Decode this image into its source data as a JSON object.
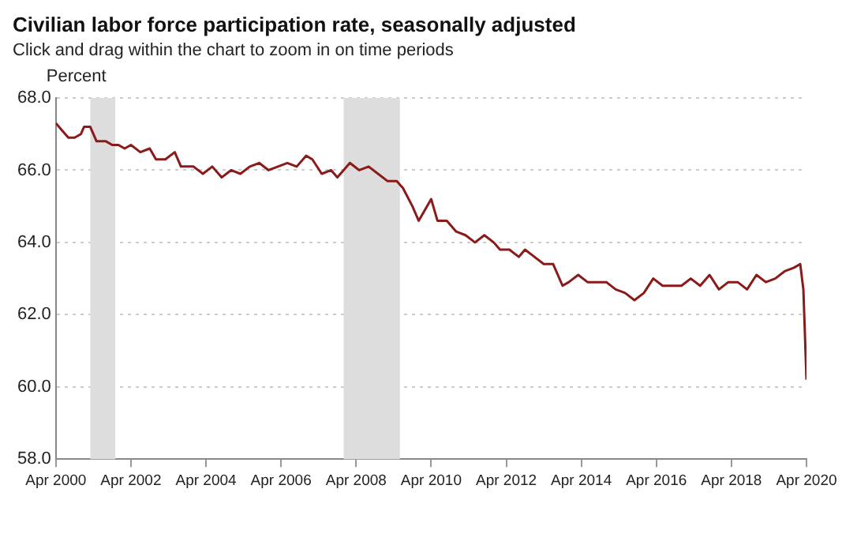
{
  "chart_data": {
    "type": "line",
    "title": "Civilian labor force participation rate, seasonally adjusted",
    "subtitle": "Click and drag within the chart to zoom in on time periods",
    "ylabel": "Percent",
    "x": [
      "2000-04",
      "2000-06",
      "2000-08",
      "2000-10",
      "2000-12",
      "2001-01",
      "2001-03",
      "2001-05",
      "2001-08",
      "2001-10",
      "2001-12",
      "2002-02",
      "2002-04",
      "2002-07",
      "2002-10",
      "2002-12",
      "2003-03",
      "2003-06",
      "2003-08",
      "2003-12",
      "2004-03",
      "2004-06",
      "2004-09",
      "2004-12",
      "2005-03",
      "2005-06",
      "2005-09",
      "2005-12",
      "2006-03",
      "2006-06",
      "2006-09",
      "2006-12",
      "2007-02",
      "2007-05",
      "2007-08",
      "2007-10",
      "2007-12",
      "2008-02",
      "2008-05",
      "2008-08",
      "2008-11",
      "2009-02",
      "2009-05",
      "2009-07",
      "2009-10",
      "2009-12",
      "2010-02",
      "2010-04",
      "2010-06",
      "2010-09",
      "2010-12",
      "2011-03",
      "2011-06",
      "2011-09",
      "2011-12",
      "2012-02",
      "2012-05",
      "2012-08",
      "2012-10",
      "2013-01",
      "2013-04",
      "2013-07",
      "2013-10",
      "2013-12",
      "2014-03",
      "2014-06",
      "2014-09",
      "2014-12",
      "2015-03",
      "2015-06",
      "2015-09",
      "2015-12",
      "2016-03",
      "2016-06",
      "2016-09",
      "2016-12",
      "2017-03",
      "2017-06",
      "2017-09",
      "2017-12",
      "2018-03",
      "2018-06",
      "2018-09",
      "2018-12",
      "2019-03",
      "2019-06",
      "2019-09",
      "2019-12",
      "2020-02",
      "2020-03",
      "2020-04"
    ],
    "series": [
      {
        "color": "#8b1a1a",
        "values": [
          67.3,
          67.1,
          66.9,
          66.9,
          67.0,
          67.2,
          67.2,
          66.8,
          66.8,
          66.7,
          66.7,
          66.6,
          66.7,
          66.5,
          66.6,
          66.3,
          66.3,
          66.5,
          66.1,
          66.1,
          65.9,
          66.1,
          65.8,
          66.0,
          65.9,
          66.1,
          66.2,
          66.0,
          66.1,
          66.2,
          66.1,
          66.4,
          66.3,
          65.9,
          66.0,
          65.8,
          66.0,
          66.2,
          66.0,
          66.1,
          65.9,
          65.7,
          65.7,
          65.5,
          65.0,
          64.6,
          64.9,
          65.2,
          64.6,
          64.6,
          64.3,
          64.2,
          64.0,
          64.2,
          64.0,
          63.8,
          63.8,
          63.6,
          63.8,
          63.6,
          63.4,
          63.4,
          62.8,
          62.9,
          63.1,
          62.9,
          62.9,
          62.9,
          62.7,
          62.6,
          62.4,
          62.6,
          63.0,
          62.8,
          62.8,
          62.8,
          63.0,
          62.8,
          63.1,
          62.7,
          62.9,
          62.9,
          62.7,
          63.1,
          62.9,
          63.0,
          63.2,
          63.3,
          63.4,
          62.7,
          60.2
        ]
      }
    ],
    "xlim": [
      "2000-04",
      "2020-04"
    ],
    "xticks": [
      {
        "value": "2000-04",
        "label": "Apr 2000"
      },
      {
        "value": "2002-04",
        "label": "Apr 2002"
      },
      {
        "value": "2004-04",
        "label": "Apr 2004"
      },
      {
        "value": "2006-04",
        "label": "Apr 2006"
      },
      {
        "value": "2008-04",
        "label": "Apr 2008"
      },
      {
        "value": "2010-04",
        "label": "Apr 2010"
      },
      {
        "value": "2012-04",
        "label": "Apr 2012"
      },
      {
        "value": "2014-04",
        "label": "Apr 2014"
      },
      {
        "value": "2016-04",
        "label": "Apr 2016"
      },
      {
        "value": "2018-04",
        "label": "Apr 2018"
      },
      {
        "value": "2020-04",
        "label": "Apr 2020"
      }
    ],
    "ylim": [
      58,
      68
    ],
    "yticks": [
      {
        "value": 58,
        "label": "58.0"
      },
      {
        "value": 60,
        "label": "60.0"
      },
      {
        "value": 62,
        "label": "62.0"
      },
      {
        "value": 64,
        "label": "64.0"
      },
      {
        "value": 66,
        "label": "66.0"
      },
      {
        "value": 68,
        "label": "68.0"
      }
    ],
    "bands": [
      {
        "axis": "x",
        "from": "2001-03",
        "to": "2001-11",
        "color": "#dddddd"
      },
      {
        "axis": "x",
        "from": "2007-12",
        "to": "2009-06",
        "color": "#dddddd"
      }
    ],
    "grid": "y",
    "legend": false,
    "marker": "none",
    "line_style": "solid"
  }
}
